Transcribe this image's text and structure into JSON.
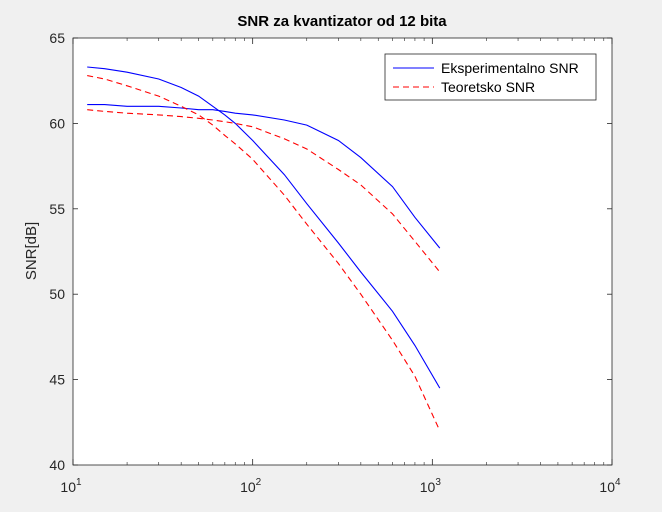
{
  "chart_data": {
    "type": "line",
    "title": "SNR za kvantizator od 12 bita",
    "xlabel": "",
    "ylabel": "SNR[dB]",
    "xscale": "log",
    "xlim": [
      10,
      10000
    ],
    "ylim": [
      40,
      65
    ],
    "x_ticks": [
      {
        "value": 10,
        "base": "10",
        "exp": "1"
      },
      {
        "value": 100,
        "base": "10",
        "exp": "2"
      },
      {
        "value": 1000,
        "base": "10",
        "exp": "3"
      },
      {
        "value": 10000,
        "base": "10",
        "exp": "4"
      }
    ],
    "y_ticks": [
      {
        "value": 40,
        "label": "40"
      },
      {
        "value": 45,
        "label": "45"
      },
      {
        "value": 50,
        "label": "50"
      },
      {
        "value": 55,
        "label": "55"
      },
      {
        "value": 60,
        "label": "60"
      },
      {
        "value": 65,
        "label": "65"
      }
    ],
    "grid": false,
    "legend_position": "top-right",
    "legend": [
      {
        "label": "Eksperimentalno SNR",
        "color": "#0000ff",
        "dash": "solid"
      },
      {
        "label": "Teoretsko SNR",
        "color": "#ff0000",
        "dash": "dashed"
      }
    ],
    "series": [
      {
        "color": "#0000ff",
        "dash": "solid",
        "x": [
          12,
          15,
          20,
          30,
          40,
          50,
          60,
          70,
          80,
          100,
          150,
          200,
          300,
          400,
          600,
          800,
          1100
        ],
        "y": [
          63.3,
          63.2,
          63.0,
          62.6,
          62.1,
          61.6,
          61.0,
          60.5,
          60.0,
          59.0,
          57.0,
          55.3,
          53.0,
          51.3,
          49.0,
          47.0,
          44.5
        ]
      },
      {
        "color": "#0000ff",
        "dash": "solid",
        "x": [
          12,
          15,
          20,
          30,
          40,
          50,
          60,
          70,
          80,
          100,
          150,
          200,
          300,
          400,
          600,
          800,
          1100
        ],
        "y": [
          61.1,
          61.1,
          61.0,
          61.0,
          60.9,
          60.8,
          60.8,
          60.7,
          60.6,
          60.5,
          60.2,
          59.9,
          59.0,
          58.0,
          56.3,
          54.5,
          52.7
        ]
      },
      {
        "color": "#ff0000",
        "dash": "dashed",
        "x": [
          12,
          15,
          20,
          30,
          40,
          50,
          60,
          70,
          80,
          100,
          150,
          200,
          300,
          400,
          600,
          800,
          1100
        ],
        "y": [
          62.8,
          62.6,
          62.2,
          61.6,
          61.0,
          60.5,
          59.9,
          59.3,
          58.8,
          57.9,
          55.8,
          54.1,
          51.8,
          50.0,
          47.3,
          45.2,
          42.0
        ]
      },
      {
        "color": "#ff0000",
        "dash": "dashed",
        "x": [
          12,
          15,
          20,
          30,
          40,
          50,
          60,
          70,
          80,
          100,
          150,
          200,
          300,
          400,
          600,
          800,
          1100
        ],
        "y": [
          60.8,
          60.7,
          60.6,
          60.5,
          60.4,
          60.3,
          60.2,
          60.1,
          60.0,
          59.8,
          59.1,
          58.5,
          57.3,
          56.4,
          54.7,
          53.1,
          51.3
        ]
      }
    ]
  }
}
